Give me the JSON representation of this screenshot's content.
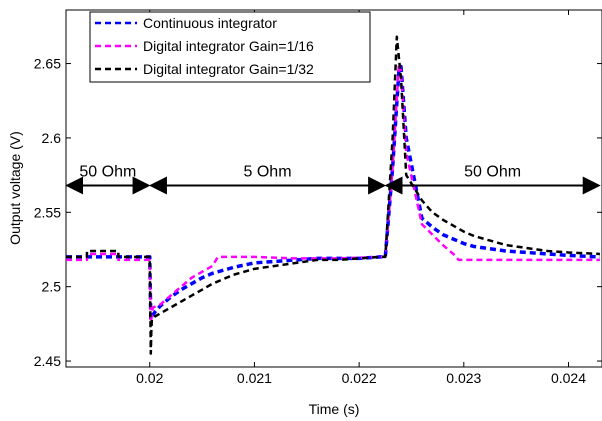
{
  "chart_data": {
    "type": "line",
    "xlabel": "Time (s)",
    "ylabel": "Output voltage (V)",
    "xlim": [
      0.0192,
      0.02432
    ],
    "ylim": [
      2.446,
      2.686
    ],
    "x_ticks": [
      0.02,
      0.021,
      0.022,
      0.023,
      0.024
    ],
    "x_tick_labels": [
      "0.02",
      "0.021",
      "0.022",
      "0.023",
      "0.024"
    ],
    "y_ticks": [
      2.45,
      2.5,
      2.55,
      2.6,
      2.65
    ],
    "y_tick_labels": [
      "2.45",
      "2.5",
      "2.55",
      "2.6",
      "2.65"
    ],
    "grid": false,
    "legend_position": "top-left",
    "colors": {
      "continuous": "#0000ff",
      "gain16": "#ff00ff",
      "gain32": "#000000"
    },
    "series": [
      {
        "name": "Continuous integrator",
        "x": [
          0.0192,
          0.02,
          0.02001,
          0.02002,
          0.02005,
          0.0201,
          0.0202,
          0.0203,
          0.0204,
          0.0205,
          0.0206,
          0.0207,
          0.0208,
          0.021,
          0.0212,
          0.0214,
          0.0216,
          0.0218,
          0.022,
          0.0222,
          0.02225,
          0.02232,
          0.02238,
          0.0224,
          0.02245,
          0.0226,
          0.0227,
          0.0228,
          0.0229,
          0.023,
          0.0231,
          0.0232,
          0.0233,
          0.0234,
          0.0236,
          0.0238,
          0.024,
          0.0243
        ],
        "y": [
          2.52,
          2.52,
          2.478,
          2.48,
          2.483,
          2.487,
          2.493,
          2.498,
          2.502,
          2.506,
          2.509,
          2.511,
          2.513,
          2.516,
          2.517,
          2.518,
          2.519,
          2.519,
          2.519,
          2.52,
          2.52,
          2.58,
          2.645,
          2.648,
          2.6,
          2.546,
          2.54,
          2.535,
          2.532,
          2.529,
          2.527,
          2.526,
          2.525,
          2.524,
          2.523,
          2.522,
          2.521,
          2.52
        ]
      },
      {
        "name": "Digital integrator Gain=1/16",
        "x": [
          0.0192,
          0.0194,
          0.0194,
          0.0197,
          0.0197,
          0.02,
          0.02001,
          0.02003,
          0.0201,
          0.0202,
          0.0203,
          0.0204,
          0.0205,
          0.0206,
          0.02065,
          0.0207,
          0.021,
          0.0214,
          0.0218,
          0.0222,
          0.02225,
          0.02232,
          0.02238,
          0.0224,
          0.02245,
          0.0226,
          0.0227,
          0.0228,
          0.0229,
          0.02295,
          0.023,
          0.0235,
          0.0243
        ],
        "y": [
          2.518,
          2.518,
          2.522,
          2.522,
          2.518,
          2.518,
          2.476,
          2.486,
          2.488,
          2.494,
          2.5,
          2.506,
          2.51,
          2.514,
          2.52,
          2.52,
          2.52,
          2.519,
          2.519,
          2.52,
          2.52,
          2.58,
          2.65,
          2.645,
          2.59,
          2.542,
          2.535,
          2.528,
          2.522,
          2.518,
          2.518,
          2.518,
          2.518
        ]
      },
      {
        "name": "Digital integrator Gain=1/32",
        "x": [
          0.0192,
          0.0194,
          0.0194,
          0.0197,
          0.0197,
          0.02,
          0.02001,
          0.020015,
          0.02002,
          0.02005,
          0.0201,
          0.0202,
          0.0203,
          0.0204,
          0.0205,
          0.0206,
          0.0207,
          0.0208,
          0.0209,
          0.021,
          0.0212,
          0.0214,
          0.0216,
          0.0218,
          0.022,
          0.0222,
          0.02225,
          0.02232,
          0.02236,
          0.0224,
          0.02245,
          0.0226,
          0.0227,
          0.0228,
          0.0229,
          0.023,
          0.0231,
          0.0232,
          0.0233,
          0.0234,
          0.0236,
          0.0238,
          0.024,
          0.0243
        ],
        "y": [
          2.52,
          2.52,
          2.524,
          2.524,
          2.52,
          2.52,
          2.455,
          2.47,
          2.478,
          2.48,
          2.482,
          2.486,
          2.49,
          2.494,
          2.498,
          2.502,
          2.505,
          2.508,
          2.51,
          2.512,
          2.514,
          2.516,
          2.518,
          2.518,
          2.519,
          2.52,
          2.52,
          2.6,
          2.668,
          2.64,
          2.575,
          2.558,
          2.55,
          2.545,
          2.541,
          2.537,
          2.534,
          2.532,
          2.53,
          2.528,
          2.526,
          2.524,
          2.523,
          2.522
        ]
      }
    ],
    "annotations": [
      {
        "text": "50 Ohm",
        "x_start": 0.0192,
        "x_end": 0.02,
        "y": 2.568
      },
      {
        "text": "5 Ohm",
        "x_start": 0.02,
        "x_end": 0.02225,
        "y": 2.568
      },
      {
        "text": "50 Ohm",
        "x_start": 0.02225,
        "x_end": 0.0243,
        "y": 2.568
      }
    ]
  }
}
